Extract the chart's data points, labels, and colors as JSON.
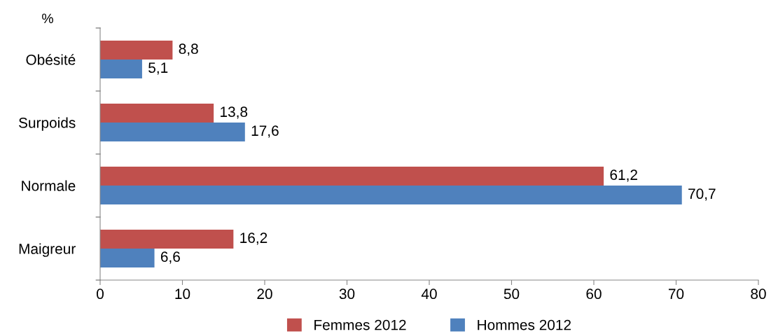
{
  "chart_data": {
    "type": "bar",
    "orientation": "horizontal",
    "ylabel": "%",
    "categories": [
      "Obésité",
      "Surpoids",
      "Normale",
      "Maigreur"
    ],
    "series": [
      {
        "name": "Femmes 2012",
        "color": "#c0504d",
        "values": [
          8.8,
          13.8,
          61.2,
          16.2
        ],
        "value_labels": [
          "8,8",
          "13,8",
          "61,2",
          "16,2"
        ]
      },
      {
        "name": "Hommes 2012",
        "color": "#4f81bd",
        "values": [
          5.1,
          17.6,
          70.7,
          6.6
        ],
        "value_labels": [
          "5,1",
          "17,6",
          "70,7",
          "6,6"
        ]
      }
    ],
    "xlim": [
      0,
      80
    ],
    "xticks": [
      0,
      10,
      20,
      30,
      40,
      50,
      60,
      70,
      80
    ],
    "grid": false,
    "legend": "bottom"
  }
}
